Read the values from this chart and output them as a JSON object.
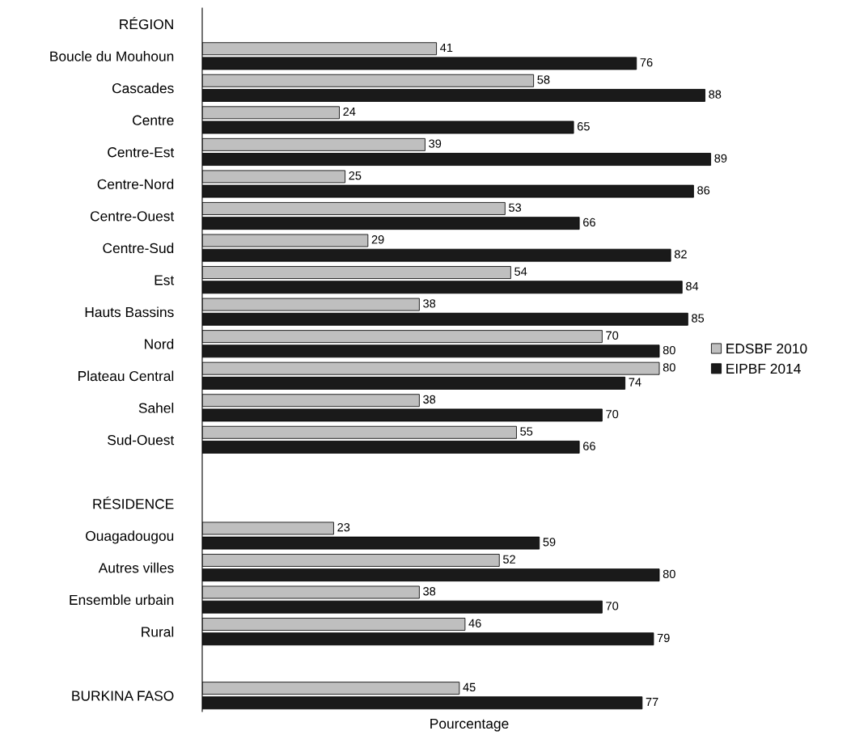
{
  "chart_data": {
    "type": "bar",
    "orientation": "horizontal",
    "xlabel": "Pourcentage",
    "categories": [
      "RÉGION",
      "Boucle du Mouhoun",
      "Cascades",
      "Centre",
      "Centre-Est",
      "Centre-Nord",
      "Centre-Ouest",
      "Centre-Sud",
      "Est",
      "Hauts Bassins",
      "Nord",
      "Plateau Central",
      "Sahel",
      "Sud-Ouest",
      null,
      "RÉSIDENCE",
      "Ouagadougou",
      "Autres villes",
      "Ensemble urbain",
      "Rural",
      null,
      "BURKINA FASO"
    ],
    "series": [
      {
        "name": "EDSBF 2010",
        "color": "#bfbfbf",
        "values": [
          null,
          41,
          58,
          24,
          39,
          25,
          53,
          29,
          54,
          38,
          70,
          80,
          38,
          55,
          null,
          null,
          23,
          52,
          38,
          46,
          null,
          45
        ]
      },
      {
        "name": "EIPBF 2014",
        "color": "#1a1a1a",
        "values": [
          null,
          76,
          88,
          65,
          89,
          86,
          66,
          82,
          84,
          85,
          80,
          74,
          70,
          66,
          null,
          null,
          59,
          80,
          70,
          79,
          null,
          77
        ]
      }
    ],
    "data_labels": true,
    "legend": "right",
    "tick_labels": "y",
    "grid": false
  }
}
